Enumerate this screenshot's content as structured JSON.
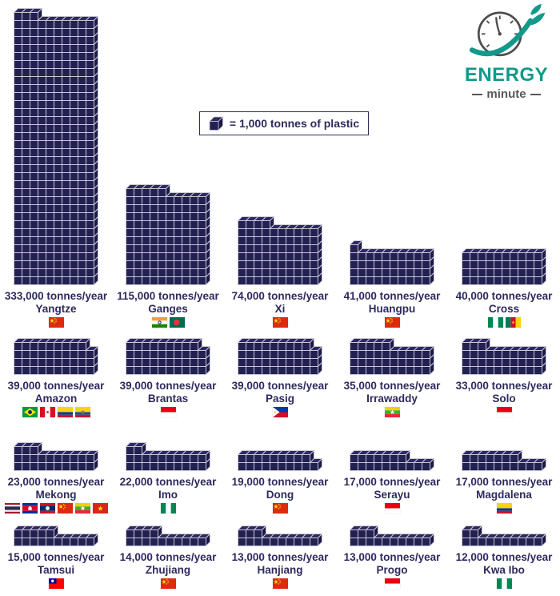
{
  "logo": {
    "brand": "ENERGY",
    "sub": "minute"
  },
  "legend": {
    "label": "= 1,000 tonnes of plastic"
  },
  "colors": {
    "navy": "#2e2a5e",
    "cube_front": "#232052",
    "cube_top": "#2e2a60",
    "cube_side": "#1b1843",
    "cube_edge": "#c7c7d8",
    "teal": "#12998a",
    "gray": "#58595b"
  },
  "chart_data": {
    "type": "bar",
    "style": "isometric-cube-pictogram",
    "title": "",
    "unit": "tonnes/year",
    "cube_value_tonnes": 1000,
    "columns_per_stack": 10,
    "legend_text": "= 1,000 tonnes of plastic",
    "categories": [
      "Yangtze",
      "Ganges",
      "Xi",
      "Huangpu",
      "Cross",
      "Amazon",
      "Brantas",
      "Pasig",
      "Irrawaddy",
      "Solo",
      "Mekong",
      "Imo",
      "Dong",
      "Serayu",
      "Magdalena",
      "Tamsui",
      "Zhujiang",
      "Hanjiang",
      "Progo",
      "Kwa Ibo"
    ],
    "values": [
      333000,
      115000,
      74000,
      41000,
      40000,
      39000,
      39000,
      39000,
      35000,
      33000,
      23000,
      22000,
      19000,
      17000,
      17000,
      15000,
      14000,
      13000,
      13000,
      12000
    ],
    "rows": [
      [
        0,
        1,
        2,
        3,
        4
      ],
      [
        5,
        6,
        7,
        8,
        9
      ],
      [
        10,
        11,
        12,
        13,
        14
      ],
      [
        15,
        16,
        17,
        18,
        19
      ]
    ],
    "rivers": [
      {
        "name": "Yangtze",
        "value_label": "333,000 tonnes/year",
        "value_tonnes": 333000,
        "cubes": 333,
        "flags": [
          "China"
        ]
      },
      {
        "name": "Ganges",
        "value_label": "115,000 tonnes/year",
        "value_tonnes": 115000,
        "cubes": 115,
        "flags": [
          "India",
          "Bangladesh"
        ]
      },
      {
        "name": "Xi",
        "value_label": "74,000 tonnes/year",
        "value_tonnes": 74000,
        "cubes": 74,
        "flags": [
          "China"
        ]
      },
      {
        "name": "Huangpu",
        "value_label": "41,000 tonnes/year",
        "value_tonnes": 41000,
        "cubes": 41,
        "flags": [
          "China"
        ]
      },
      {
        "name": "Cross",
        "value_label": "40,000 tonnes/year",
        "value_tonnes": 40000,
        "cubes": 40,
        "flags": [
          "Nigeria",
          "Cameroon"
        ]
      },
      {
        "name": "Amazon",
        "value_label": "39,000 tonnes/year",
        "value_tonnes": 39000,
        "cubes": 39,
        "flags": [
          "Brazil",
          "Peru",
          "Colombia",
          "Ecuador"
        ]
      },
      {
        "name": "Brantas",
        "value_label": "39,000 tonnes/year",
        "value_tonnes": 39000,
        "cubes": 39,
        "flags": [
          "Indonesia"
        ]
      },
      {
        "name": "Pasig",
        "value_label": "39,000 tonnes/year",
        "value_tonnes": 39000,
        "cubes": 39,
        "flags": [
          "Philippines"
        ]
      },
      {
        "name": "Irrawaddy",
        "value_label": "35,000 tonnes/year",
        "value_tonnes": 35000,
        "cubes": 35,
        "flags": [
          "Myanmar"
        ]
      },
      {
        "name": "Solo",
        "value_label": "33,000 tonnes/year",
        "value_tonnes": 33000,
        "cubes": 33,
        "flags": [
          "Indonesia"
        ]
      },
      {
        "name": "Mekong",
        "value_label": "23,000 tonnes/year",
        "value_tonnes": 23000,
        "cubes": 23,
        "flags": [
          "Thailand",
          "Cambodia",
          "Laos",
          "China",
          "Myanmar",
          "Vietnam"
        ]
      },
      {
        "name": "Imo",
        "value_label": "22,000 tonnes/year",
        "value_tonnes": 22000,
        "cubes": 22,
        "flags": [
          "Nigeria"
        ]
      },
      {
        "name": "Dong",
        "value_label": "19,000 tonnes/year",
        "value_tonnes": 19000,
        "cubes": 19,
        "flags": [
          "China"
        ]
      },
      {
        "name": "Serayu",
        "value_label": "17,000 tonnes/year",
        "value_tonnes": 17000,
        "cubes": 17,
        "flags": [
          "Indonesia"
        ]
      },
      {
        "name": "Magdalena",
        "value_label": "17,000 tonnes/year",
        "value_tonnes": 17000,
        "cubes": 17,
        "flags": [
          "Colombia"
        ]
      },
      {
        "name": "Tamsui",
        "value_label": "15,000 tonnes/year",
        "value_tonnes": 15000,
        "cubes": 15,
        "flags": [
          "Taiwan"
        ]
      },
      {
        "name": "Zhujiang",
        "value_label": "14,000 tonnes/year",
        "value_tonnes": 14000,
        "cubes": 14,
        "flags": [
          "China"
        ]
      },
      {
        "name": "Hanjiang",
        "value_label": "13,000 tonnes/year",
        "value_tonnes": 13000,
        "cubes": 13,
        "flags": [
          "China"
        ]
      },
      {
        "name": "Progo",
        "value_label": "13,000 tonnes/year",
        "value_tonnes": 13000,
        "cubes": 13,
        "flags": [
          "Indonesia"
        ]
      },
      {
        "name": "Kwa Ibo",
        "value_label": "12,000 tonnes/year",
        "value_tonnes": 12000,
        "cubes": 12,
        "flags": [
          "Nigeria"
        ]
      }
    ]
  }
}
